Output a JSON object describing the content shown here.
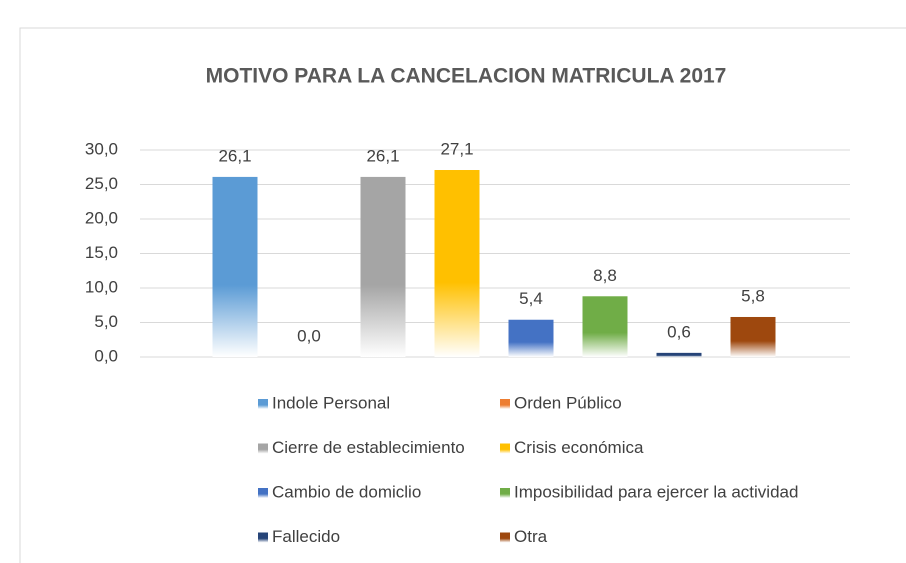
{
  "chart_data": {
    "type": "bar",
    "title": "MOTIVO PARA LA CANCELACION MATRICULA 2017",
    "series": [
      {
        "name": "Indole Personal",
        "color": "#5b9bd5",
        "values": [
          26.1
        ],
        "value_labels": [
          "26,1"
        ]
      },
      {
        "name": "Orden Público",
        "color": "#ed7d31",
        "values": [
          0.0
        ],
        "value_labels": [
          "0,0"
        ]
      },
      {
        "name": "Cierre de establecimiento",
        "color": "#a5a5a5",
        "values": [
          26.1
        ],
        "value_labels": [
          "26,1"
        ]
      },
      {
        "name": "Crisis económica",
        "color": "#ffc000",
        "values": [
          27.1
        ],
        "value_labels": [
          "27,1"
        ]
      },
      {
        "name": "Cambio de domiclio",
        "color": "#4472c4",
        "values": [
          5.4
        ],
        "value_labels": [
          "5,4"
        ]
      },
      {
        "name": "Imposibilidad para ejercer la actividad",
        "color": "#70ad47",
        "values": [
          8.8
        ],
        "value_labels": [
          "8,8"
        ]
      },
      {
        "name": "Fallecido",
        "color": "#264478",
        "values": [
          0.6
        ],
        "value_labels": [
          "0,6"
        ]
      },
      {
        "name": "Otra",
        "color": "#9e480e",
        "values": [
          5.8
        ],
        "value_labels": [
          "5,8"
        ]
      }
    ],
    "ylim": [
      0,
      30
    ],
    "yticks": [
      {
        "value": 0,
        "label": "0,0"
      },
      {
        "value": 5,
        "label": "5,0"
      },
      {
        "value": 10,
        "label": "10,0"
      },
      {
        "value": 15,
        "label": "15,0"
      },
      {
        "value": 20,
        "label": "20,0"
      },
      {
        "value": 25,
        "label": "25,0"
      },
      {
        "value": 30,
        "label": "30,0"
      }
    ],
    "grid": true,
    "legend": "bottom"
  }
}
